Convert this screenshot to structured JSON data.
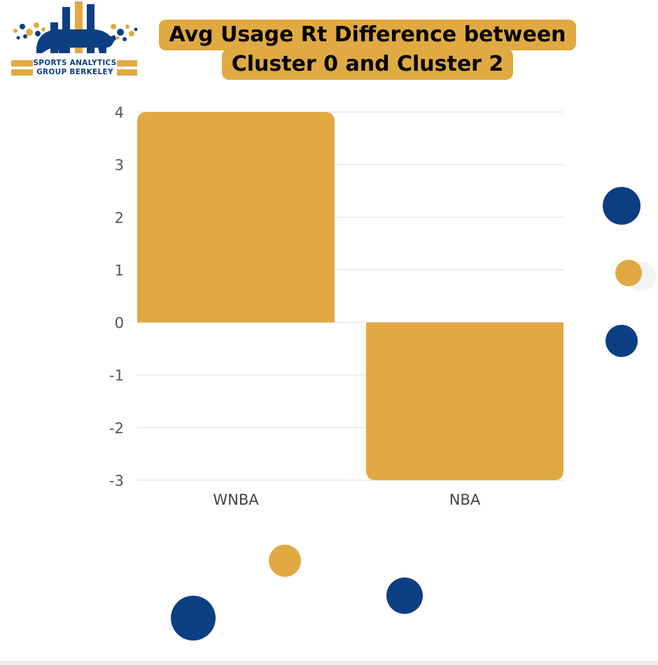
{
  "logo": {
    "line1": "SPORTS ANALYTICS",
    "line2": "GROUP BERKELEY"
  },
  "colors": {
    "gold": "#e0a942",
    "navy": "#0c3f82"
  },
  "chart_data": {
    "type": "bar",
    "title_lines": [
      "Avg Usage Rt Difference between",
      "Cluster 0 and Cluster 2"
    ],
    "categories": [
      "WNBA",
      "NBA"
    ],
    "values": [
      4.0,
      -3.0
    ],
    "xlabel": "",
    "ylabel": "",
    "ylim": [
      -3,
      4
    ],
    "yticks": [
      4,
      3,
      2,
      1,
      0,
      -1,
      -2,
      -3
    ],
    "grid": true,
    "legend": "none"
  }
}
